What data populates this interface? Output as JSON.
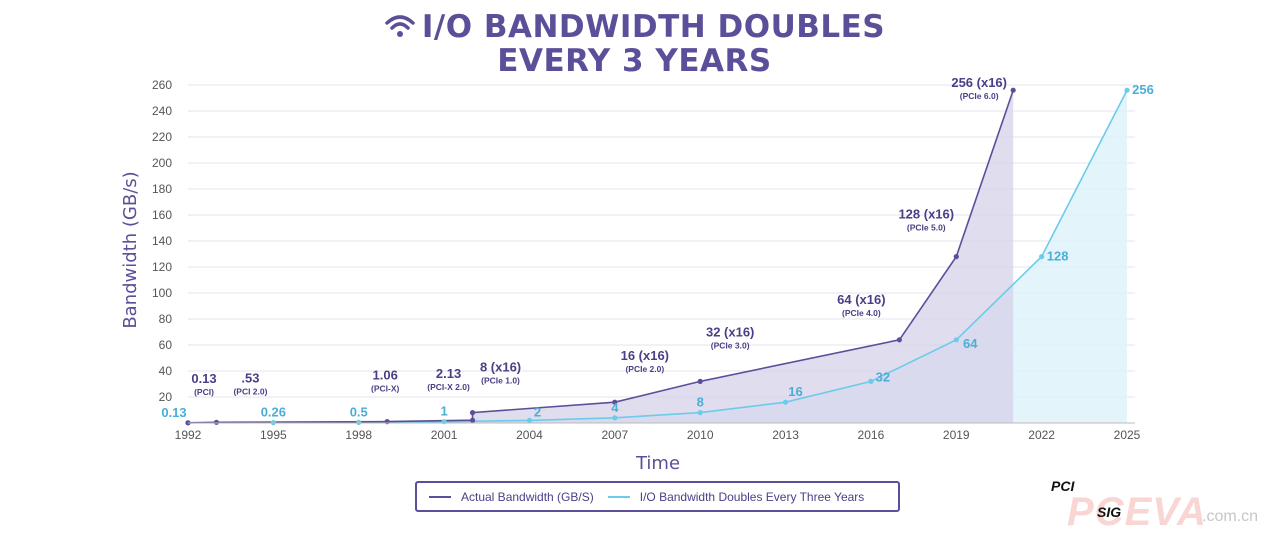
{
  "title": {
    "line1": "I/O BANDWIDTH DOUBLES",
    "line2": "EVERY 3 YEARS"
  },
  "colors": {
    "actual": "#5b4f99",
    "actual_fill": "#d6d2e9",
    "doubles": "#6ccbea",
    "doubles_fill": "#dff2fa",
    "grid": "#e4e4ec",
    "axis_text": "#555555"
  },
  "logo": {
    "pci": "PCI",
    "sig": "SIG",
    "watermark": "PCEVA",
    "watermark_domain": ".com.cn"
  },
  "chart_data": {
    "type": "area",
    "title": "I/O BANDWIDTH DOUBLES EVERY 3 YEARS",
    "xlabel": "Time",
    "ylabel": "Bandwidth (GB/s)",
    "xlim": [
      1992,
      2025
    ],
    "ylim": [
      0,
      260
    ],
    "xticks": [
      1992,
      1995,
      1998,
      2001,
      2004,
      2007,
      2010,
      2013,
      2016,
      2019,
      2022,
      2025
    ],
    "yticks": [
      20,
      40,
      60,
      80,
      100,
      120,
      140,
      160,
      180,
      200,
      220,
      240,
      260
    ],
    "grid": true,
    "legend_position": "bottom-center",
    "series": [
      {
        "name": "Actual Bandwidth (GB/S)",
        "points": [
          {
            "x": 1992,
            "y": 0.13,
            "label": "0.13",
            "sub": "(PCI)"
          },
          {
            "x": 1993,
            "y": 0.53,
            "label": ".53",
            "sub": "(PCI 2.0)"
          },
          {
            "x": 1999,
            "y": 1.06,
            "label": "1.06",
            "sub": "(PCI-X)"
          },
          {
            "x": 2002,
            "y": 2.13,
            "label": "2.13",
            "sub": "(PCI-X 2.0)"
          },
          {
            "x": 2002,
            "y": 8,
            "label": "8 (x16)",
            "sub": "(PCIe 1.0)"
          },
          {
            "x": 2007,
            "y": 16,
            "label": "16 (x16)",
            "sub": "(PCIe 2.0)"
          },
          {
            "x": 2010,
            "y": 32,
            "label": "32 (x16)",
            "sub": "(PCIe 3.0)"
          },
          {
            "x": 2017,
            "y": 64,
            "label": "64 (x16)",
            "sub": "(PCIe 4.0)"
          },
          {
            "x": 2019,
            "y": 128,
            "label": "128 (x16)",
            "sub": "(PCIe 5.0)"
          },
          {
            "x": 2021,
            "y": 256,
            "label": "256 (x16)",
            "sub": "(PCIe 6.0)"
          }
        ]
      },
      {
        "name": "I/O Bandwidth Doubles Every Three Years",
        "points": [
          {
            "x": 1992,
            "y": 0.13,
            "label": "0.13"
          },
          {
            "x": 1995,
            "y": 0.26,
            "label": "0.26"
          },
          {
            "x": 1998,
            "y": 0.5,
            "label": "0.5"
          },
          {
            "x": 2001,
            "y": 1,
            "label": "1"
          },
          {
            "x": 2004,
            "y": 2,
            "label": "2"
          },
          {
            "x": 2007,
            "y": 4,
            "label": "4"
          },
          {
            "x": 2010,
            "y": 8,
            "label": "8"
          },
          {
            "x": 2013,
            "y": 16,
            "label": "16"
          },
          {
            "x": 2016,
            "y": 32,
            "label": "32"
          },
          {
            "x": 2019,
            "y": 64,
            "label": "64"
          },
          {
            "x": 2022,
            "y": 128,
            "label": "128"
          },
          {
            "x": 2025,
            "y": 256,
            "label": "256"
          }
        ]
      }
    ]
  }
}
